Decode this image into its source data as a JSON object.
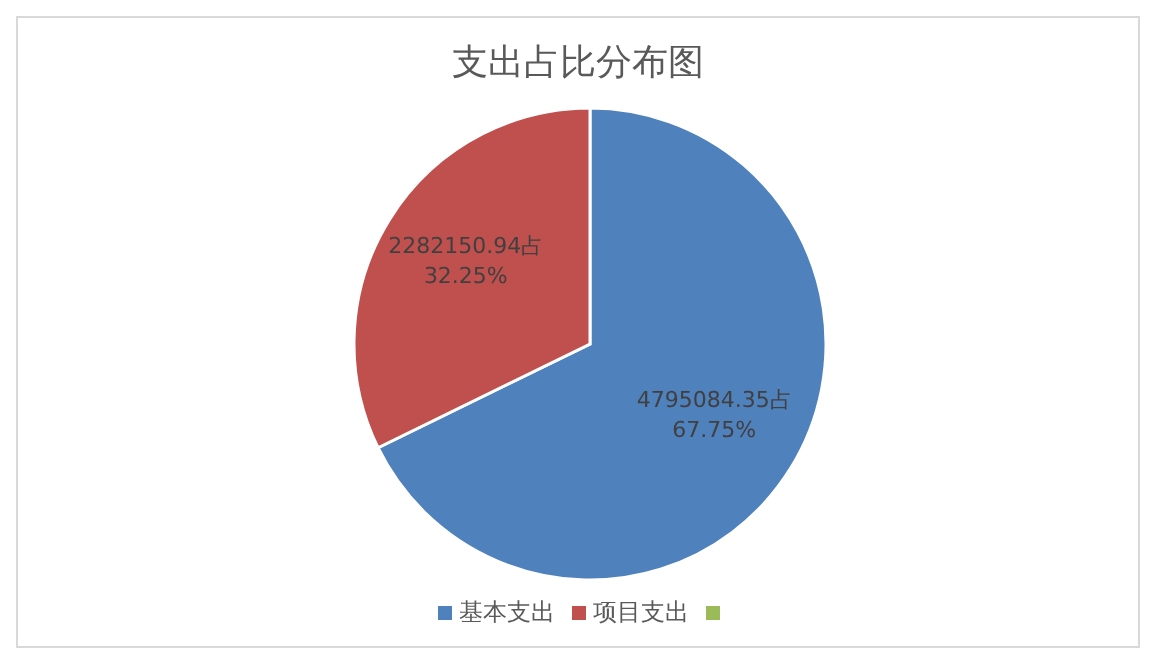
{
  "chart_data": {
    "type": "pie",
    "title": "支出占比分布图",
    "categories": [
      "基本支出",
      "项目支出",
      null
    ],
    "values": [
      4795084.35,
      2282150.94,
      0
    ],
    "colors": [
      "#4f81bd",
      "#c0504d",
      "#9bbb59"
    ],
    "value_labels": [
      "4795084.35占\n67.75%",
      "2282150.94占\n32.25%",
      null
    ],
    "legend": "bottom"
  }
}
